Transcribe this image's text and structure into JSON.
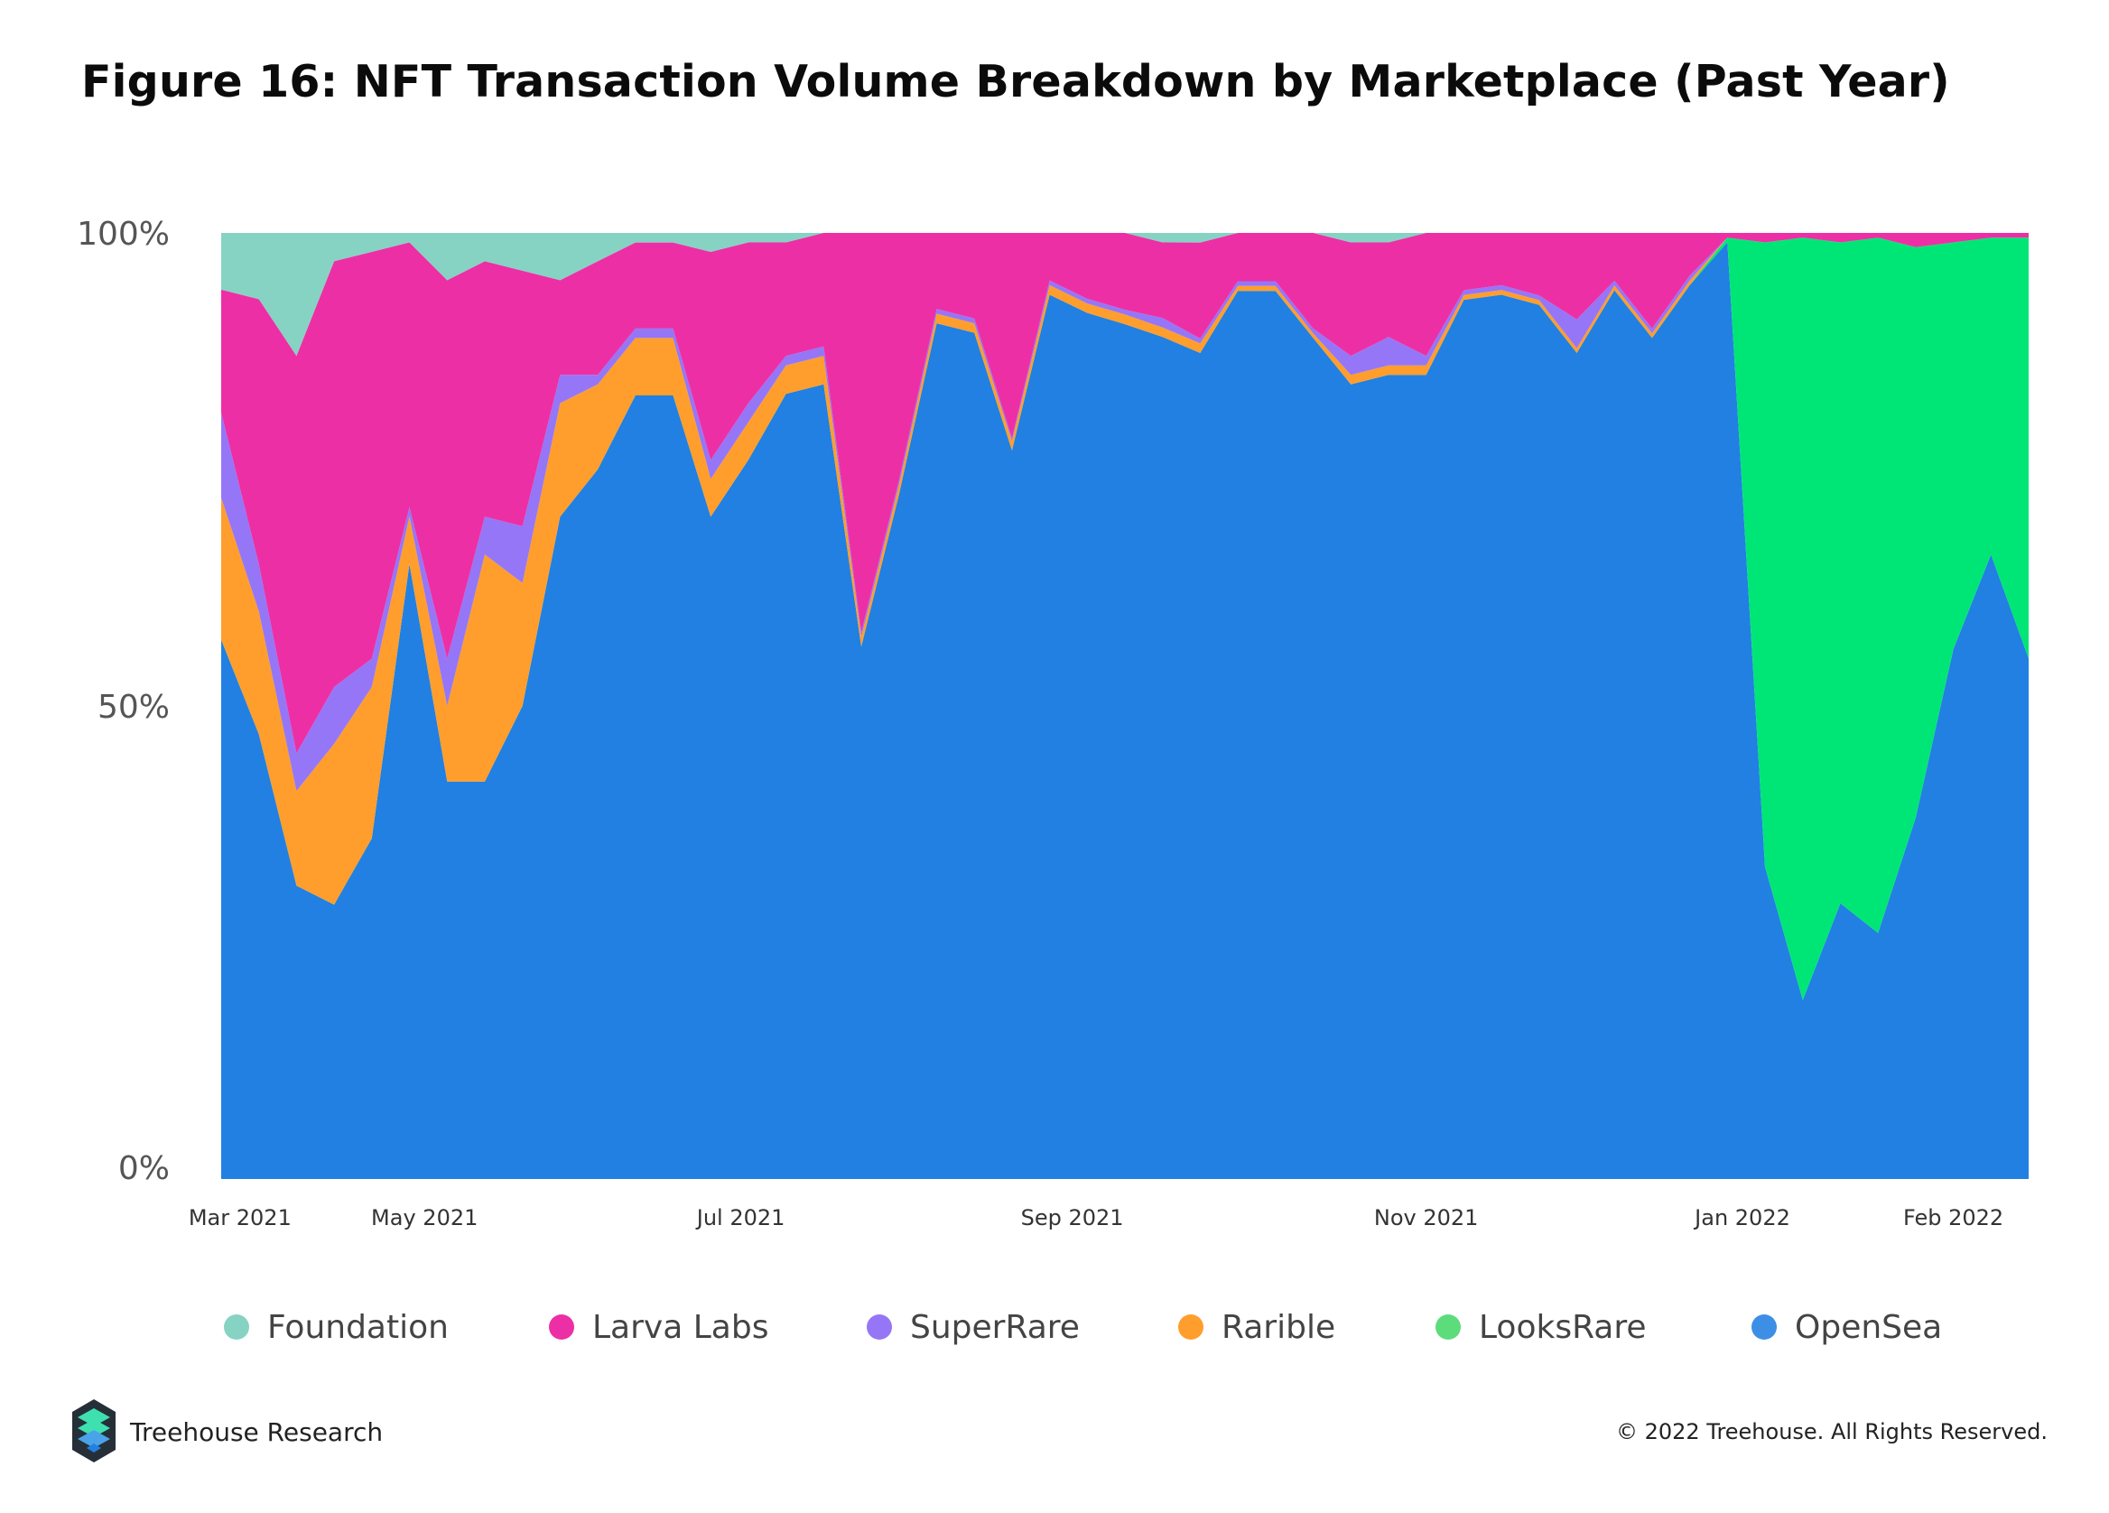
{
  "title": "Figure 16: NFT Transaction Volume Breakdown by Marketplace (Past Year)",
  "brand": {
    "name": "Treehouse Research",
    "logo": "treehouse-logo-icon"
  },
  "copyright": "© 2022 Treehouse. All Rights Reserved.",
  "chart_data": {
    "type": "area",
    "stacked": true,
    "normalized": true,
    "y_ticks": [
      "0%",
      "50%",
      "100%"
    ],
    "y_range": [
      0,
      100
    ],
    "x_ticks": [
      {
        "label": "Mar 2021",
        "x": 0.5
      },
      {
        "label": "May 2021",
        "x": 5.4
      },
      {
        "label": "Jul 2021",
        "x": 13.8
      },
      {
        "label": "Sep 2021",
        "x": 22.6
      },
      {
        "label": "Nov 2021",
        "x": 32.0
      },
      {
        "label": "Jan 2022",
        "x": 40.4
      },
      {
        "label": "Feb 2022",
        "x": 46.0
      }
    ],
    "x": [
      0,
      1,
      2,
      3,
      4,
      5,
      6,
      7,
      8,
      9,
      10,
      11,
      12,
      13,
      14,
      15,
      16,
      17,
      18,
      19,
      20,
      21,
      22,
      23,
      24,
      25,
      26,
      27,
      28,
      29,
      30,
      31,
      32,
      33,
      34,
      35,
      36,
      37,
      38,
      39,
      40,
      41,
      42,
      43,
      44,
      45,
      46,
      47,
      48
    ],
    "legend_position": "bottom",
    "grid": false,
    "series": [
      {
        "name": "OpenSea",
        "color": "#2180e1",
        "values": [
          57,
          47,
          31,
          29,
          36,
          65,
          42,
          42,
          50,
          70,
          75,
          82,
          82,
          70,
          76,
          83,
          84,
          56,
          72,
          90,
          89,
          77,
          93,
          92,
          89,
          89,
          86,
          92,
          92,
          88,
          84,
          85,
          85,
          92,
          93,
          91,
          86,
          93,
          88,
          94,
          99,
          33,
          19,
          29,
          26,
          38,
          56,
          66,
          55
        ]
      },
      {
        "name": "LooksRare",
        "color": "#00e676",
        "values": [
          0,
          0,
          0,
          0,
          0,
          0,
          0,
          0,
          0,
          0,
          0,
          0,
          0,
          0,
          0,
          0,
          0,
          0,
          0,
          0,
          0,
          0,
          0,
          0,
          0,
          0,
          0,
          0,
          0,
          0,
          0,
          0,
          0,
          0,
          0,
          0,
          0,
          0,
          0,
          0,
          0.5,
          66,
          81,
          69.5,
          73.5,
          60,
          43,
          33.5,
          44.5
        ]
      },
      {
        "name": "Rarible",
        "color": "#ff9e2c",
        "values": [
          15,
          13,
          10,
          17,
          16,
          5,
          8,
          24,
          13,
          12,
          9,
          6,
          6,
          4,
          4,
          3,
          3,
          1,
          1,
          1,
          1,
          1,
          1,
          1,
          1,
          1,
          1,
          0.5,
          0.5,
          0.5,
          1,
          1,
          1,
          0.5,
          0.5,
          0.5,
          0.5,
          0.5,
          0.5,
          0.5,
          0,
          0,
          0,
          0,
          0,
          0,
          0,
          0,
          0
        ]
      },
      {
        "name": "SuperRare",
        "color": "#9576f7",
        "values": [
          9,
          5,
          4,
          6,
          3,
          1,
          5,
          4,
          6,
          3,
          1,
          1,
          1,
          2,
          2,
          1,
          1,
          0.5,
          0.5,
          0.5,
          0.5,
          0.3,
          0.5,
          0.5,
          0.5,
          1,
          0.5,
          0.5,
          0.5,
          0.5,
          2,
          3,
          1,
          0.5,
          0.5,
          0.5,
          3,
          0.5,
          0.5,
          0.5,
          0,
          0,
          0,
          0,
          0,
          0,
          0,
          0,
          0
        ]
      },
      {
        "name": "Larva Labs",
        "color": "#ed2fa5",
        "values": [
          13,
          28,
          42,
          45,
          43,
          28,
          40,
          27,
          27,
          10,
          12,
          9,
          9,
          22,
          17,
          12,
          12,
          42,
          26,
          8,
          9,
          21.7,
          5,
          7,
          8,
          8,
          10,
          5,
          5,
          10,
          12,
          10,
          13,
          6,
          5.5,
          6.5,
          9,
          5,
          10,
          4.5,
          0.5,
          1,
          0.5,
          1,
          0.5,
          1.5,
          1,
          0.5,
          0.5
        ]
      },
      {
        "name": "Foundation",
        "color": "#86d3c3",
        "values": [
          6,
          7,
          13,
          3,
          2,
          1,
          5,
          3,
          4,
          5,
          3,
          1,
          1,
          2,
          1,
          1,
          0,
          0,
          0,
          0,
          0,
          0,
          0,
          0,
          0,
          1,
          1,
          0,
          0,
          0,
          1,
          1,
          0,
          0,
          0,
          0,
          0,
          0,
          0,
          0,
          0,
          0,
          0,
          0,
          0,
          0,
          0,
          0,
          0
        ]
      }
    ],
    "legend_order": [
      "Foundation",
      "Larva Labs",
      "SuperRare",
      "Rarible",
      "LooksRare",
      "OpenSea"
    ]
  }
}
